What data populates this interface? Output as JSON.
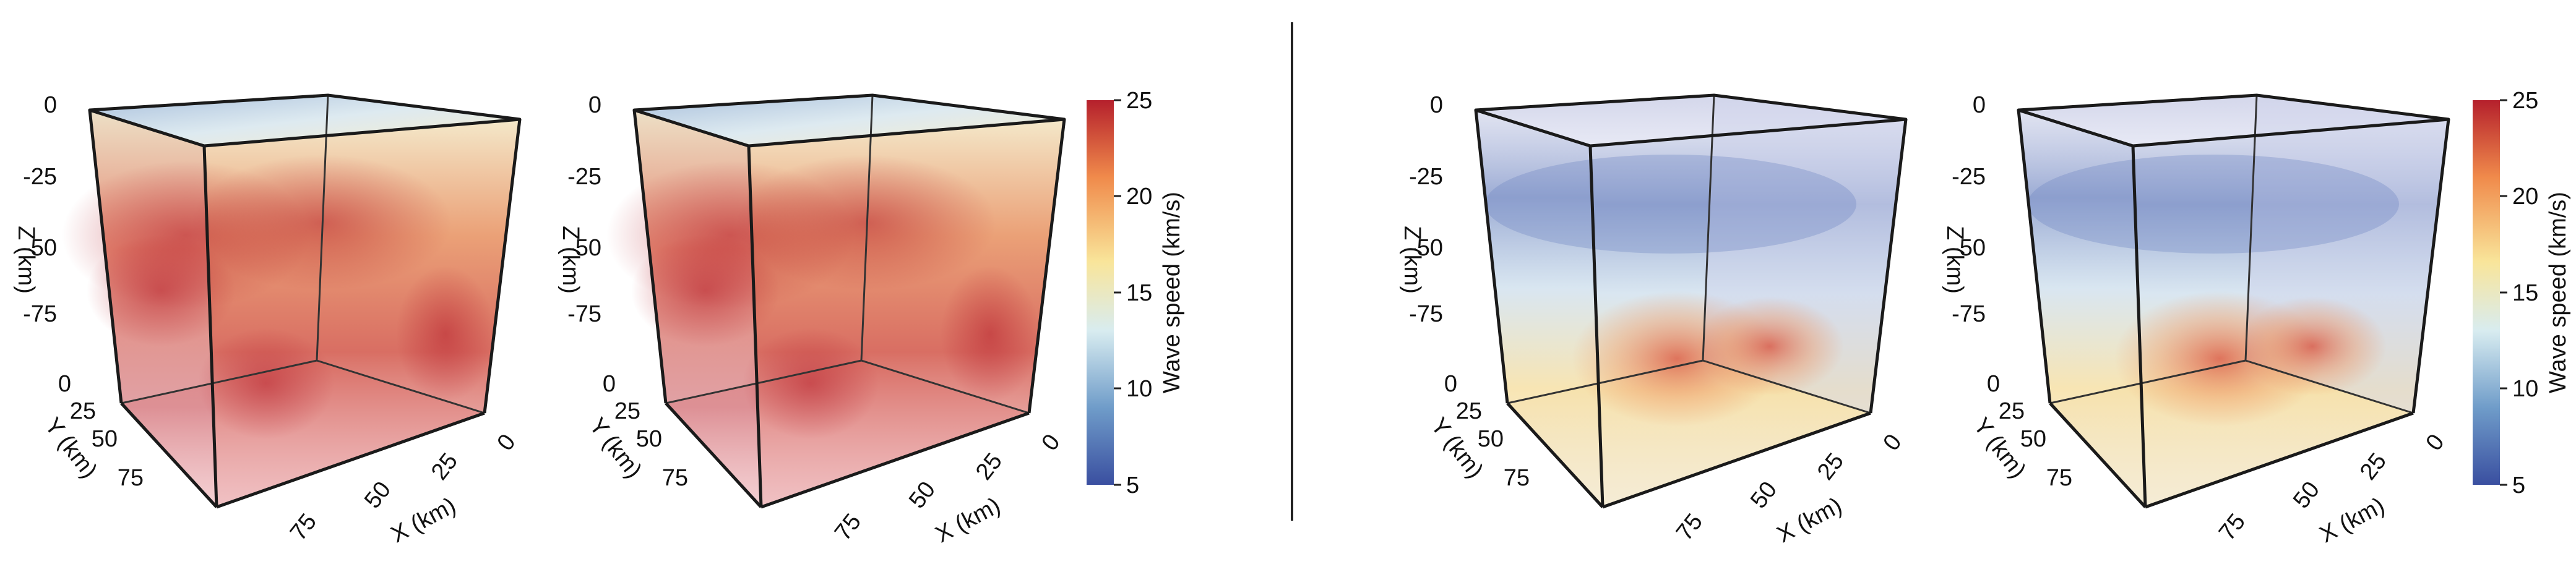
{
  "panels": [
    {
      "id": "left-a",
      "z_ticks": [
        "0",
        "-25",
        "-50",
        "-75"
      ],
      "z_label": "Z (km)",
      "y_ticks": [
        "0",
        "25",
        "50",
        "75"
      ],
      "y_label": "Y (km)",
      "x_ticks": [
        "75",
        "50",
        "25",
        "0"
      ],
      "x_label": "X (km)",
      "palette": "warm"
    },
    {
      "id": "left-b",
      "z_ticks": [
        "0",
        "-25",
        "-50",
        "-75"
      ],
      "z_label": "Z (km)",
      "y_ticks": [
        "0",
        "25",
        "50",
        "75"
      ],
      "y_label": "Y (km)",
      "x_ticks": [
        "75",
        "50",
        "25",
        "0"
      ],
      "x_label": "X (km)",
      "palette": "warm"
    },
    {
      "id": "right-a",
      "z_ticks": [
        "0",
        "-25",
        "-50",
        "-75"
      ],
      "z_label": "Z (km)",
      "y_ticks": [
        "0",
        "25",
        "50",
        "75"
      ],
      "y_label": "Y (km)",
      "x_ticks": [
        "75",
        "50",
        "25",
        "0"
      ],
      "x_label": "X (km)",
      "palette": "cool"
    },
    {
      "id": "right-b",
      "z_ticks": [
        "0",
        "-25",
        "-50",
        "-75"
      ],
      "z_label": "Z (km)",
      "y_ticks": [
        "0",
        "25",
        "50",
        "75"
      ],
      "y_label": "Y (km)",
      "x_ticks": [
        "75",
        "50",
        "25",
        "0"
      ],
      "x_label": "X (km)",
      "palette": "cool"
    }
  ],
  "colorbars": [
    {
      "id": "left",
      "title": "Wave speed (km/s)",
      "ticks": [
        "25",
        "20",
        "15",
        "10",
        "5"
      ]
    },
    {
      "id": "right",
      "title": "Wave speed (km/s)",
      "ticks": [
        "25",
        "20",
        "15",
        "10",
        "5"
      ]
    }
  ],
  "colormap": [
    "#3a4fa0",
    "#6f9cc9",
    "#d8ecf0",
    "#f9e59a",
    "#f08a4b",
    "#b5202c"
  ]
}
